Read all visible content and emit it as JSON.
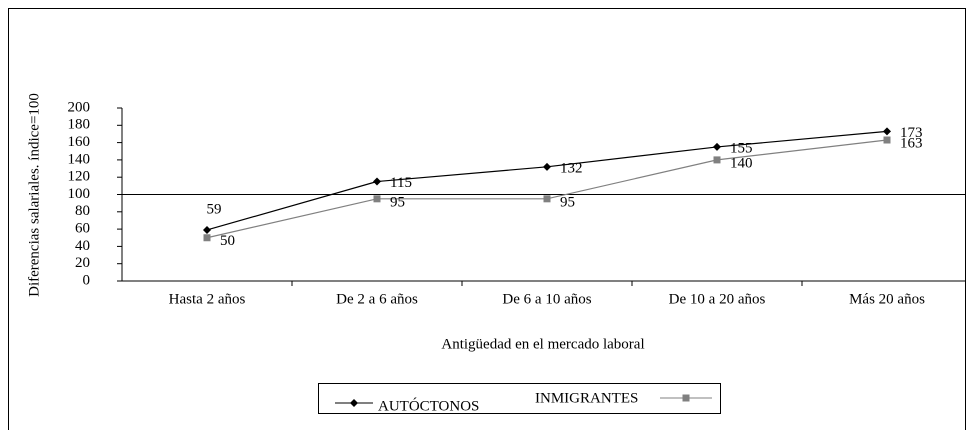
{
  "chart_data": {
    "type": "line",
    "y_label": "Diferencias salariales. índice=100",
    "x_label": "Antigüedad en el mercado laboral",
    "categories": [
      "Hasta 2 años",
      "De 2 a 6 años",
      "De 6 a 10 años",
      "De 10 a 20 años",
      "Más 20 años"
    ],
    "series": [
      {
        "name": "AUTÓCTONOS",
        "color": "#000000",
        "marker": "diamond",
        "values": [
          59,
          115,
          132,
          155,
          173
        ]
      },
      {
        "name": "INMIGRANTES",
        "color": "#808080",
        "marker": "square",
        "values": [
          50,
          95,
          95,
          140,
          163
        ]
      }
    ],
    "ylim": [
      0,
      200
    ],
    "yticks": [
      0,
      20,
      40,
      60,
      80,
      100,
      120,
      140,
      160,
      180,
      200
    ],
    "reference_line": 100
  }
}
